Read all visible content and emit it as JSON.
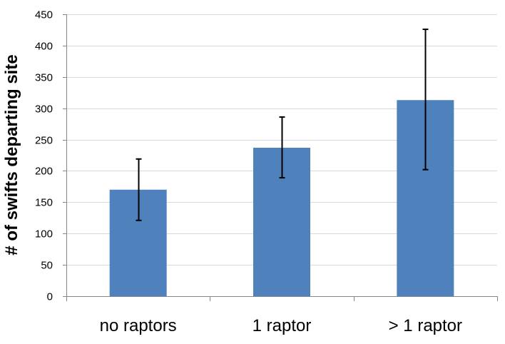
{
  "chart_data": {
    "type": "bar",
    "title": "",
    "xlabel": "",
    "ylabel": "# of swifts departing site",
    "categories": [
      "no raptors",
      "1 raptor",
      "> 1 raptor"
    ],
    "series": [
      {
        "values": [
          170,
          237,
          313
        ],
        "error_low": [
          121,
          189,
          202
        ],
        "error_high": [
          219,
          286,
          426
        ]
      }
    ],
    "ylim": [
      0,
      450
    ],
    "yticks": [
      0,
      50,
      100,
      150,
      200,
      250,
      300,
      350,
      400,
      450
    ],
    "grid": true,
    "legend": "none",
    "colors": {
      "bar": "#4f81bd",
      "grid": "#d9d9d9",
      "axis": "#868686",
      "error_bar": "#000000"
    }
  }
}
